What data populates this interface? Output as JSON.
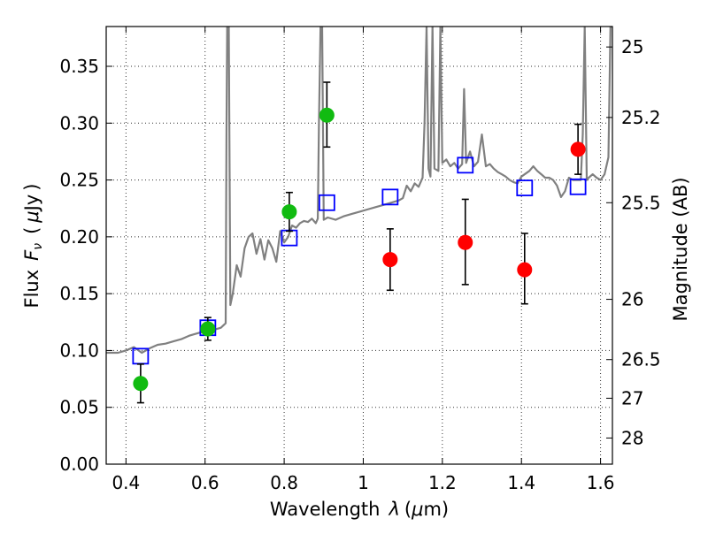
{
  "chart_data": {
    "type": "scatter",
    "xlabel_text": "Wavelength",
    "xlabel_symbol": "λ",
    "xlabel_unit_open": "(",
    "xlabel_unit_mu": "μ",
    "xlabel_unit_rest": "m)",
    "ylabel_text": "Flux",
    "ylabel_symbol_F": "F",
    "ylabel_symbol_sub": "ν",
    "ylabel_unit_open": "(",
    "ylabel_unit_mu": "μ",
    "ylabel_unit_rest": "Jy",
    "ylabel_unit_close": ")",
    "y2label": "Magnitude (AB)",
    "xlim": [
      0.35,
      1.63
    ],
    "ylim": [
      0.0,
      0.385
    ],
    "xticks": [
      0.4,
      0.6,
      0.8,
      1.0,
      1.2,
      1.4,
      1.6
    ],
    "xtick_labels": [
      "0.4",
      "0.6",
      "0.8",
      "1",
      "1.2",
      "1.4",
      "1.6"
    ],
    "yticks": [
      0.0,
      0.05,
      0.1,
      0.15,
      0.2,
      0.25,
      0.3,
      0.35
    ],
    "ytick_labels": [
      "0.00",
      "0.05",
      "0.10",
      "0.15",
      "0.20",
      "0.25",
      "0.30",
      "0.35"
    ],
    "y2ticks": [
      {
        "flux": 0.367,
        "label": "25"
      },
      {
        "flux": 0.305,
        "label": "25.2"
      },
      {
        "flux": 0.23,
        "label": "25.5"
      },
      {
        "flux": 0.145,
        "label": "26"
      },
      {
        "flux": 0.092,
        "label": "26.5"
      },
      {
        "flux": 0.058,
        "label": "27"
      },
      {
        "flux": 0.023,
        "label": "28"
      }
    ],
    "grid": true,
    "series": [
      {
        "kind": "line",
        "color": "#808080",
        "points": [
          [
            0.35,
            0.098
          ],
          [
            0.38,
            0.098
          ],
          [
            0.4,
            0.1
          ],
          [
            0.42,
            0.103
          ],
          [
            0.44,
            0.098
          ],
          [
            0.46,
            0.102
          ],
          [
            0.48,
            0.105
          ],
          [
            0.5,
            0.106
          ],
          [
            0.52,
            0.108
          ],
          [
            0.54,
            0.11
          ],
          [
            0.56,
            0.113
          ],
          [
            0.58,
            0.115
          ],
          [
            0.6,
            0.117
          ],
          [
            0.62,
            0.118
          ],
          [
            0.64,
            0.12
          ],
          [
            0.652,
            0.124
          ],
          [
            0.654,
            0.29
          ],
          [
            0.656,
            0.385
          ],
          [
            0.66,
            0.385
          ],
          [
            0.664,
            0.14
          ],
          [
            0.67,
            0.15
          ],
          [
            0.68,
            0.175
          ],
          [
            0.69,
            0.165
          ],
          [
            0.7,
            0.19
          ],
          [
            0.71,
            0.2
          ],
          [
            0.72,
            0.203
          ],
          [
            0.73,
            0.185
          ],
          [
            0.74,
            0.198
          ],
          [
            0.75,
            0.18
          ],
          [
            0.76,
            0.197
          ],
          [
            0.77,
            0.19
          ],
          [
            0.78,
            0.178
          ],
          [
            0.79,
            0.205
          ],
          [
            0.8,
            0.195
          ],
          [
            0.81,
            0.2
          ],
          [
            0.82,
            0.21
          ],
          [
            0.83,
            0.208
          ],
          [
            0.84,
            0.212
          ],
          [
            0.85,
            0.214
          ],
          [
            0.86,
            0.213
          ],
          [
            0.87,
            0.216
          ],
          [
            0.88,
            0.212
          ],
          [
            0.885,
            0.216
          ],
          [
            0.888,
            0.3
          ],
          [
            0.892,
            0.385
          ],
          [
            0.896,
            0.385
          ],
          [
            0.9,
            0.215
          ],
          [
            0.91,
            0.217
          ],
          [
            0.93,
            0.215
          ],
          [
            0.95,
            0.218
          ],
          [
            0.97,
            0.22
          ],
          [
            0.99,
            0.222
          ],
          [
            1.01,
            0.224
          ],
          [
            1.03,
            0.226
          ],
          [
            1.05,
            0.228
          ],
          [
            1.07,
            0.23
          ],
          [
            1.09,
            0.232
          ],
          [
            1.1,
            0.234
          ],
          [
            1.11,
            0.245
          ],
          [
            1.12,
            0.24
          ],
          [
            1.13,
            0.247
          ],
          [
            1.14,
            0.244
          ],
          [
            1.15,
            0.252
          ],
          [
            1.155,
            0.3
          ],
          [
            1.16,
            0.385
          ],
          [
            1.165,
            0.26
          ],
          [
            1.17,
            0.253
          ],
          [
            1.175,
            0.385
          ],
          [
            1.18,
            0.26
          ],
          [
            1.19,
            0.258
          ],
          [
            1.195,
            0.385
          ],
          [
            1.2,
            0.265
          ],
          [
            1.21,
            0.268
          ],
          [
            1.22,
            0.262
          ],
          [
            1.23,
            0.265
          ],
          [
            1.24,
            0.26
          ],
          [
            1.25,
            0.264
          ],
          [
            1.255,
            0.33
          ],
          [
            1.26,
            0.265
          ],
          [
            1.27,
            0.275
          ],
          [
            1.28,
            0.262
          ],
          [
            1.29,
            0.266
          ],
          [
            1.3,
            0.29
          ],
          [
            1.31,
            0.262
          ],
          [
            1.32,
            0.264
          ],
          [
            1.33,
            0.26
          ],
          [
            1.34,
            0.257
          ],
          [
            1.35,
            0.255
          ],
          [
            1.36,
            0.253
          ],
          [
            1.37,
            0.25
          ],
          [
            1.38,
            0.248
          ],
          [
            1.39,
            0.247
          ],
          [
            1.4,
            0.253
          ],
          [
            1.42,
            0.258
          ],
          [
            1.43,
            0.262
          ],
          [
            1.44,
            0.258
          ],
          [
            1.45,
            0.255
          ],
          [
            1.46,
            0.252
          ],
          [
            1.47,
            0.252
          ],
          [
            1.48,
            0.25
          ],
          [
            1.49,
            0.245
          ],
          [
            1.5,
            0.235
          ],
          [
            1.51,
            0.24
          ],
          [
            1.52,
            0.252
          ],
          [
            1.53,
            0.25
          ],
          [
            1.54,
            0.25
          ],
          [
            1.55,
            0.25
          ],
          [
            1.555,
            0.29
          ],
          [
            1.56,
            0.385
          ],
          [
            1.565,
            0.25
          ],
          [
            1.57,
            0.252
          ],
          [
            1.58,
            0.255
          ],
          [
            1.59,
            0.252
          ],
          [
            1.6,
            0.25
          ],
          [
            1.61,
            0.255
          ],
          [
            1.62,
            0.27
          ],
          [
            1.625,
            0.385
          ],
          [
            1.63,
            0.385
          ]
        ]
      },
      {
        "kind": "squares",
        "color": "#0000ff",
        "points": [
          [
            0.437,
            0.095
          ],
          [
            0.607,
            0.12
          ],
          [
            0.813,
            0.199
          ],
          [
            0.908,
            0.23
          ],
          [
            1.068,
            0.235
          ],
          [
            1.258,
            0.263
          ],
          [
            1.408,
            0.243
          ],
          [
            1.543,
            0.244
          ]
        ]
      },
      {
        "kind": "circles",
        "color": "#11bb11",
        "points": [
          {
            "x": 0.437,
            "y": 0.071,
            "lo": 0.054,
            "hi": 0.088
          },
          {
            "x": 0.607,
            "y": 0.119,
            "lo": 0.109,
            "hi": 0.129
          },
          {
            "x": 0.813,
            "y": 0.222,
            "lo": 0.205,
            "hi": 0.239
          },
          {
            "x": 0.908,
            "y": 0.307,
            "lo": 0.279,
            "hi": 0.336
          }
        ]
      },
      {
        "kind": "circles",
        "color": "#ff0000",
        "points": [
          {
            "x": 1.068,
            "y": 0.18,
            "lo": 0.153,
            "hi": 0.207
          },
          {
            "x": 1.258,
            "y": 0.195,
            "lo": 0.158,
            "hi": 0.233
          },
          {
            "x": 1.408,
            "y": 0.171,
            "lo": 0.141,
            "hi": 0.203
          },
          {
            "x": 1.543,
            "y": 0.277,
            "lo": 0.255,
            "hi": 0.299
          }
        ]
      }
    ]
  }
}
